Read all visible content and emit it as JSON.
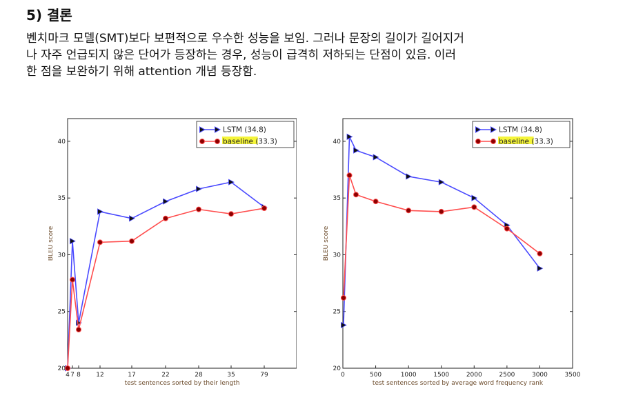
{
  "page": {
    "heading": "5) 결론",
    "paragraph_lines": [
      "벤치마크 모델(SMT)보다 보편적으로 우수한 성능을 보임. 그러나 문장의 길이가 길어지거",
      "나 자주 언급되지 않은 단어가 등장하는 경우, 성능이 급격히 저하되는 단점이 있음. 이러",
      "한 점을 보완하기 위해 attention 개념 등장함."
    ]
  },
  "colors": {
    "lstm": "#4a4aff",
    "baseline": "#ff4d4d",
    "highlight": "#f5f53a",
    "axis_label": "#6b4a2a"
  },
  "chart_data": [
    {
      "type": "line",
      "xlabel": "test sentences sorted by their length",
      "ylabel": "BLEU score",
      "x_ticks": [
        "4",
        "7",
        "8",
        "12",
        "17",
        "22",
        "28",
        "35",
        "79"
      ],
      "y_ticks": [
        "20",
        "25",
        "30",
        "35",
        "40"
      ],
      "ylim": [
        20,
        42
      ],
      "legend": "top-right",
      "series": [
        {
          "name": "LSTM",
          "legend_value": "(34.8)",
          "marker": "triangle",
          "points": [
            [
              4,
              20
            ],
            [
              7,
              31.2
            ],
            [
              8,
              24
            ],
            [
              12,
              33.8
            ],
            [
              17,
              33.2
            ],
            [
              22,
              34.7
            ],
            [
              28,
              35.8
            ],
            [
              35,
              36.4
            ],
            [
              79,
              34.2
            ]
          ]
        },
        {
          "name": "baseline",
          "legend_value": "(33.3)",
          "marker": "circle",
          "points": [
            [
              4,
              20
            ],
            [
              7,
              27.8
            ],
            [
              8,
              23.4
            ],
            [
              12,
              31.1
            ],
            [
              17,
              31.2
            ],
            [
              22,
              33.2
            ],
            [
              28,
              34
            ],
            [
              35,
              33.6
            ],
            [
              79,
              34.1
            ]
          ]
        }
      ]
    },
    {
      "type": "line",
      "xlabel": "test sentences sorted by average word frequency rank",
      "ylabel": "BLEU score",
      "x_ticks": [
        "0",
        "500",
        "1000",
        "1500",
        "2000",
        "2500",
        "3000",
        "3500"
      ],
      "y_ticks": [
        "20",
        "25",
        "30",
        "35",
        "40"
      ],
      "xlim": [
        0,
        3500
      ],
      "ylim": [
        20,
        42
      ],
      "legend": "top-right",
      "series": [
        {
          "name": "LSTM",
          "legend_value": "(34.8)",
          "marker": "triangle",
          "points": [
            [
              10,
              23.8
            ],
            [
              100,
              40.4
            ],
            [
              200,
              39.2
            ],
            [
              500,
              38.6
            ],
            [
              1000,
              36.9
            ],
            [
              1500,
              36.4
            ],
            [
              2000,
              35
            ],
            [
              2500,
              32.6
            ],
            [
              3000,
              28.8
            ]
          ]
        },
        {
          "name": "baseline",
          "legend_value": "(33.3)",
          "marker": "circle",
          "points": [
            [
              10,
              26.2
            ],
            [
              100,
              37
            ],
            [
              200,
              35.3
            ],
            [
              500,
              34.7
            ],
            [
              1000,
              33.9
            ],
            [
              1500,
              33.8
            ],
            [
              2000,
              34.2
            ],
            [
              2500,
              32.3
            ],
            [
              3000,
              30.1
            ]
          ]
        }
      ]
    }
  ]
}
